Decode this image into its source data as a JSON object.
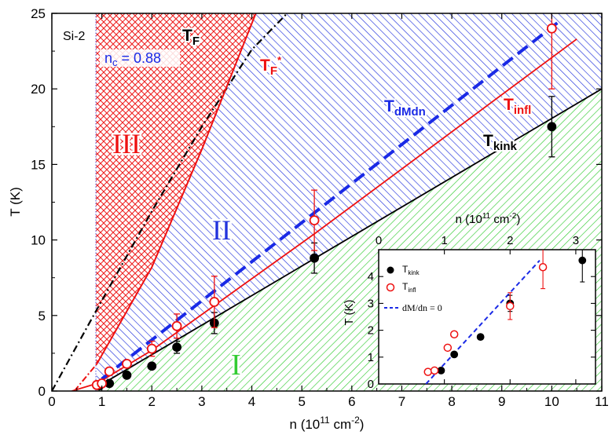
{
  "chart_data": {
    "type": "scatter",
    "sample_label": "Si-2",
    "xlabel": "n (10",
    "xlabel_exp": "11",
    "xlabel_unit": " cm",
    "xlabel_exp2": "-2",
    "xlabel_close": ")",
    "ylabel": "T (K)",
    "xlim": [
      0,
      11
    ],
    "ylim": [
      0,
      25
    ],
    "x_ticks": [
      "0",
      "1",
      "2",
      "3",
      "4",
      "5",
      "6",
      "7",
      "8",
      "9",
      "10",
      "11"
    ],
    "y_ticks": [
      "0",
      "5",
      "10",
      "15",
      "20",
      "25"
    ],
    "nc_label": "n",
    "nc_sub": "c",
    "nc_value": " = 0.88",
    "regions": [
      {
        "name": "I",
        "color": "#33cc33"
      },
      {
        "name": "II",
        "color": "#2233dd"
      },
      {
        "name": "III",
        "color": "#ee2222"
      }
    ],
    "curve_labels": {
      "TF": {
        "main": "T",
        "sub": "F"
      },
      "TFstar": {
        "main": "T",
        "sub": "F",
        "sup": "*"
      },
      "Tinfl": {
        "main": "T",
        "sub": "infl"
      },
      "TdMdn": {
        "main": "T",
        "sub": "dMdn"
      },
      "Tkink": {
        "main": "T",
        "sub": "kink"
      }
    },
    "series": [
      {
        "name": "T_kink",
        "marker": "filled-circle",
        "color": "#000000",
        "x": [
          0.95,
          1.15,
          1.5,
          2.0,
          2.5,
          3.25,
          5.25,
          10.0
        ],
        "y": [
          0.35,
          0.5,
          1.05,
          1.65,
          2.9,
          4.5,
          8.8,
          17.5
        ],
        "err_lo": [
          0,
          0,
          0,
          0,
          0.4,
          0.7,
          1.0,
          2.0
        ],
        "err_hi": [
          0,
          0,
          0,
          0,
          0.4,
          0.7,
          1.0,
          2.0
        ]
      },
      {
        "name": "T_infl",
        "marker": "open-circle",
        "color": "#ee1111",
        "x": [
          0.9,
          1.0,
          1.15,
          1.5,
          2.0,
          2.5,
          3.25,
          5.25,
          10.0
        ],
        "y": [
          0.4,
          0.5,
          1.3,
          1.8,
          2.8,
          4.3,
          5.9,
          11.3,
          24.0
        ],
        "err_lo": [
          0,
          0,
          0,
          0,
          0.5,
          0.8,
          1.7,
          2.0,
          4.0
        ],
        "err_hi": [
          0,
          0,
          0,
          0,
          0.5,
          0.8,
          1.7,
          2.0,
          4.0
        ]
      }
    ],
    "lines": {
      "T_kink": {
        "x": [
          1.0,
          11.0
        ],
        "y": [
          0.45,
          20.0
        ]
      },
      "T_dMdn": {
        "x": [
          1.0,
          10.2
        ],
        "y": [
          0.8,
          24.6
        ]
      },
      "T_infl": {
        "x": [
          0.4,
          0.9,
          2.0,
          5.25,
          10.5
        ],
        "y": [
          0.0,
          0.5,
          2.7,
          10.4,
          23.3
        ]
      },
      "T_F_star": {
        "x": [
          0.45,
          0.9,
          2.0,
          3.0,
          4.08
        ],
        "y": [
          0.0,
          1.8,
          8.2,
          16.0,
          25.0
        ]
      },
      "T_F": {
        "x": [
          0.0,
          0.9,
          2.0,
          3.0,
          4.0,
          5.0
        ],
        "y": [
          0.0,
          5.4,
          11.9,
          17.5,
          22.6,
          26.0
        ]
      }
    },
    "inset": {
      "xlabel": "n (10",
      "xlabel_exp": "11",
      "xlabel_unit": " cm",
      "xlabel_exp2": "-2",
      "xlabel_close": ")",
      "ylabel": "T (K)",
      "xlim": [
        0,
        3.3
      ],
      "ylim": [
        0,
        5.0
      ],
      "x_ticks": [
        "0",
        "1",
        "2",
        "3"
      ],
      "y_ticks": [
        "0",
        "1",
        "2",
        "3",
        "4"
      ],
      "legend": [
        {
          "main": "T",
          "sub": "kink",
          "marker": "filled-circle"
        },
        {
          "main": "T",
          "sub": "infl",
          "marker": "open-circle"
        },
        {
          "main": "dM/dn = 0",
          "sub": "",
          "marker": "dashed-line"
        }
      ],
      "series": [
        {
          "name": "T_kink",
          "x": [
            0.95,
            1.15,
            1.55,
            2.0,
            3.1
          ],
          "y": [
            0.5,
            1.1,
            1.75,
            3.0,
            4.6
          ],
          "err": [
            0,
            0,
            0,
            0.3,
            0.8
          ]
        },
        {
          "name": "T_infl",
          "x": [
            0.75,
            0.85,
            1.05,
            1.15,
            2.0,
            2.5
          ],
          "y": [
            0.45,
            0.5,
            1.35,
            1.85,
            2.9,
            4.35
          ],
          "err": [
            0,
            0,
            0,
            0,
            0.5,
            0.8
          ]
        }
      ],
      "line_dMdn": {
        "x": [
          0.72,
          2.45
        ],
        "y": [
          0.0,
          4.6
        ]
      }
    }
  }
}
